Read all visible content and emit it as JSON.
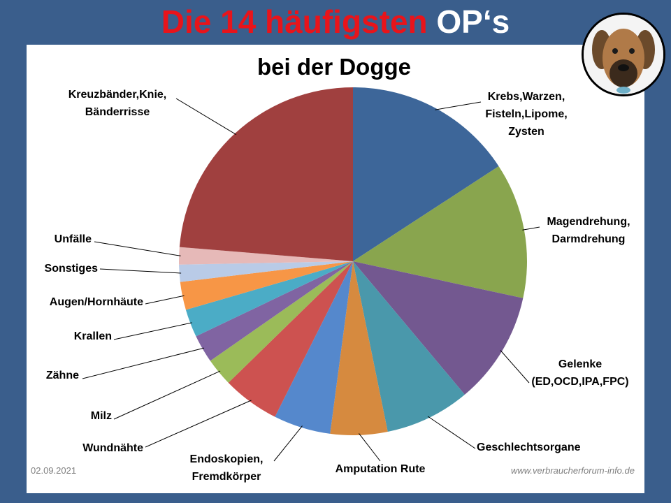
{
  "title": {
    "part_red": "Die 14 häufigsten",
    "part_white": "OP‘s"
  },
  "footer": {
    "date": "02.09.2021",
    "url": "www.verbraucherforum-info.de"
  },
  "colors": {
    "background": "#3a5e8c",
    "title_red": "#e8141b"
  },
  "chart_data": {
    "type": "pie",
    "title": "bei der Dogge",
    "start_angle_deg": 0,
    "direction": "clockwise",
    "slices": [
      {
        "label": "Krebs,Warzen, Fisteln,Lipome, Zysten",
        "lines": [
          "Krebs,Warzen,",
          "Fisteln,Lipome,",
          "Zysten"
        ],
        "value": 15.8,
        "color": "#3d6699"
      },
      {
        "label": "Magendrehung, Darmdrehung",
        "lines": [
          "Magendrehung,",
          "Darmdrehung"
        ],
        "value": 12.6,
        "color": "#89a54e"
      },
      {
        "label": "Gelenke (ED,OCD,IPA,FPC)",
        "lines": [
          "Gelenke",
          "(ED,OCD,IPA,FPC)"
        ],
        "value": 10.5,
        "color": "#735890"
      },
      {
        "label": "Geschlechtsorgane",
        "lines": [
          "Geschlechtsorgane"
        ],
        "value": 7.9,
        "color": "#4a98ab"
      },
      {
        "label": "Amputation Rute",
        "lines": [
          "Amputation  Rute"
        ],
        "value": 5.3,
        "color": "#d68a3f"
      },
      {
        "label": "Endoskopien, Fremdkörper",
        "lines": [
          "Endoskopien,",
          "Fremdkörper"
        ],
        "value": 5.3,
        "color": "#5588cc"
      },
      {
        "label": "Wundnähte",
        "lines": [
          "Wundnähte"
        ],
        "value": 5.3,
        "color": "#cd5250"
      },
      {
        "label": "Milz",
        "lines": [
          "Milz"
        ],
        "value": 2.6,
        "color": "#9bbb59"
      },
      {
        "label": "Zähne",
        "lines": [
          "Zähne"
        ],
        "value": 2.6,
        "color": "#8064a2"
      },
      {
        "label": "Krallen",
        "lines": [
          "Krallen"
        ],
        "value": 2.6,
        "color": "#4bacc6"
      },
      {
        "label": "Augen/Hornhäute",
        "lines": [
          "Augen/Hornhäute"
        ],
        "value": 2.6,
        "color": "#f79646"
      },
      {
        "label": "Sonstiges",
        "lines": [
          "Sonstiges"
        ],
        "value": 1.6,
        "color": "#b9cbe7"
      },
      {
        "label": "Unfälle",
        "lines": [
          "Unfälle"
        ],
        "value": 1.6,
        "color": "#e6b9b8"
      },
      {
        "label": "Kreuzbänder,Knie, Bänderrisse",
        "lines": [
          "Kreuzbänder,Knie,",
          "Bänderrisse"
        ],
        "value": 23.7,
        "color": "#a0403f"
      }
    ]
  }
}
